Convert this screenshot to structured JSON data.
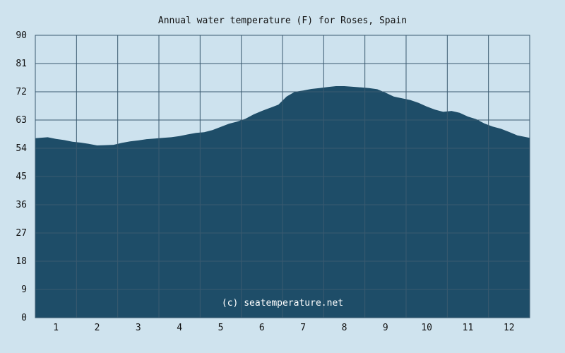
{
  "chart_data": {
    "type": "area",
    "title": "Annual water temperature (F) for Roses, Spain",
    "xlabel": "",
    "ylabel": "",
    "x_ticks": [
      "1",
      "2",
      "3",
      "4",
      "5",
      "6",
      "7",
      "8",
      "9",
      "10",
      "11",
      "12"
    ],
    "y_ticks": [
      "0",
      "9",
      "18",
      "27",
      "36",
      "45",
      "54",
      "63",
      "72",
      "81",
      "90"
    ],
    "xlim": [
      0.5,
      12.5
    ],
    "ylim": [
      0,
      90
    ],
    "grid": true,
    "watermark": "(c) seatemperature.net",
    "colors": {
      "background": "#cfe3ee",
      "plot_background": "#cde2ee",
      "fill": "#1e4d68",
      "grid": "#3a5a70"
    },
    "series": [
      {
        "x": [
          0.5,
          0.8,
          1.0,
          1.2,
          1.4,
          1.6,
          1.8,
          2.0,
          2.2,
          2.4,
          2.6,
          2.8,
          3.0,
          3.2,
          3.4,
          3.6,
          3.8,
          4.0,
          4.2,
          4.4,
          4.6,
          4.8,
          5.0,
          5.2,
          5.4,
          5.6,
          5.8,
          6.0,
          6.2,
          6.4,
          6.6,
          6.8,
          7.0,
          7.2,
          7.4,
          7.6,
          7.8,
          8.0,
          8.2,
          8.4,
          8.6,
          8.8,
          9.0,
          9.2,
          9.4,
          9.6,
          9.8,
          10.0,
          10.2,
          10.4,
          10.6,
          10.8,
          11.0,
          11.2,
          11.4,
          11.6,
          11.8,
          12.0,
          12.2,
          12.5
        ],
        "values": [
          57.2,
          57.5,
          57.0,
          56.6,
          56.1,
          55.8,
          55.4,
          54.9,
          55.0,
          55.1,
          55.7,
          56.2,
          56.5,
          56.9,
          57.1,
          57.3,
          57.5,
          57.9,
          58.4,
          58.9,
          59.1,
          59.8,
          60.8,
          61.8,
          62.5,
          63.4,
          64.8,
          65.9,
          66.9,
          67.9,
          70.5,
          72.0,
          72.4,
          72.9,
          73.2,
          73.5,
          73.8,
          73.8,
          73.6,
          73.4,
          73.2,
          72.8,
          71.7,
          70.5,
          69.9,
          69.4,
          68.5,
          67.3,
          66.3,
          65.6,
          65.9,
          65.3,
          64.1,
          63.3,
          61.9,
          60.9,
          60.2,
          59.2,
          58.1,
          57.3
        ]
      }
    ]
  }
}
